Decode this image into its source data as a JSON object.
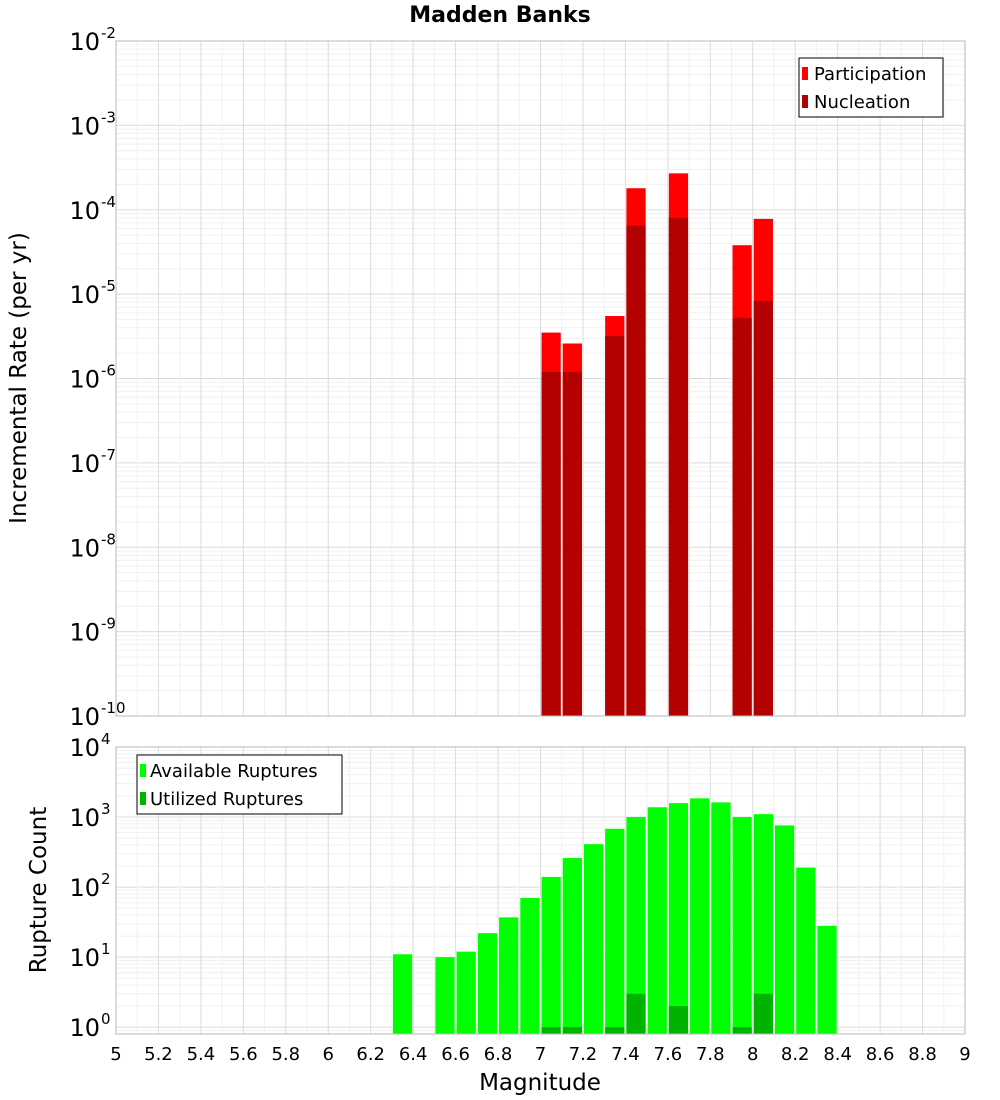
{
  "chart_data": [
    {
      "type": "bar",
      "title": "Madden Banks",
      "xlabel": "",
      "ylabel": "Incremental Rate (per yr)",
      "yscale": "log",
      "ylim": [
        1e-10,
        0.01
      ],
      "xlim": [
        5,
        9
      ],
      "grid": true,
      "legend_placement": "top-right",
      "y_ticks": [
        {
          "base": "10",
          "exp": "-10"
        },
        {
          "base": "10",
          "exp": "-9"
        },
        {
          "base": "10",
          "exp": "-8"
        },
        {
          "base": "10",
          "exp": "-7"
        },
        {
          "base": "10",
          "exp": "-6"
        },
        {
          "base": "10",
          "exp": "-5"
        },
        {
          "base": "10",
          "exp": "-4"
        },
        {
          "base": "10",
          "exp": "-3"
        },
        {
          "base": "10",
          "exp": "-2"
        }
      ],
      "series": [
        {
          "name": "Participation",
          "color": "#ff0000",
          "x": [
            7.05,
            7.15,
            7.35,
            7.45,
            7.65,
            7.95,
            8.05
          ],
          "values": [
            3.5e-06,
            2.6e-06,
            5.5e-06,
            0.00018,
            0.00027,
            3.8e-05,
            7.8e-05
          ]
        },
        {
          "name": "Nucleation",
          "color": "#b30000",
          "x": [
            7.05,
            7.15,
            7.35,
            7.45,
            7.65,
            7.95,
            8.05
          ],
          "values": [
            1.2e-06,
            1.2e-06,
            3.2e-06,
            6.5e-05,
            8e-05,
            5.2e-06,
            8.3e-06
          ]
        }
      ]
    },
    {
      "type": "bar",
      "title": "",
      "xlabel": "Magnitude",
      "ylabel": "Rupture Count",
      "yscale": "log",
      "ylim": [
        0.8,
        10000
      ],
      "xlim": [
        5,
        9
      ],
      "grid": true,
      "legend_placement": "top-left",
      "x_ticks": [
        "5",
        "5.2",
        "5.4",
        "5.6",
        "5.8",
        "6",
        "6.2",
        "6.4",
        "6.6",
        "6.8",
        "7",
        "7.2",
        "7.4",
        "7.6",
        "7.8",
        "8",
        "8.2",
        "8.4",
        "8.6",
        "8.8",
        "9"
      ],
      "y_ticks": [
        {
          "base": "10",
          "exp": "0"
        },
        {
          "base": "10",
          "exp": "1"
        },
        {
          "base": "10",
          "exp": "2"
        },
        {
          "base": "10",
          "exp": "3"
        },
        {
          "base": "10",
          "exp": "4"
        }
      ],
      "series": [
        {
          "name": "Available Ruptures",
          "color": "#00ff00",
          "x": [
            6.35,
            6.55,
            6.65,
            6.75,
            6.85,
            6.95,
            7.05,
            7.15,
            7.25,
            7.35,
            7.45,
            7.55,
            7.65,
            7.75,
            7.85,
            7.95,
            8.05,
            8.15,
            8.25,
            8.35
          ],
          "values": [
            11,
            10,
            12,
            22,
            37,
            70,
            140,
            260,
            410,
            680,
            1000,
            1380,
            1580,
            1850,
            1620,
            1000,
            1100,
            760,
            190,
            28
          ]
        },
        {
          "name": "Utilized Ruptures",
          "color": "#00b300",
          "x": [
            7.05,
            7.15,
            7.35,
            7.45,
            7.65,
            7.95,
            8.05
          ],
          "values": [
            1,
            1,
            1,
            3,
            2,
            1,
            3
          ]
        }
      ]
    }
  ]
}
